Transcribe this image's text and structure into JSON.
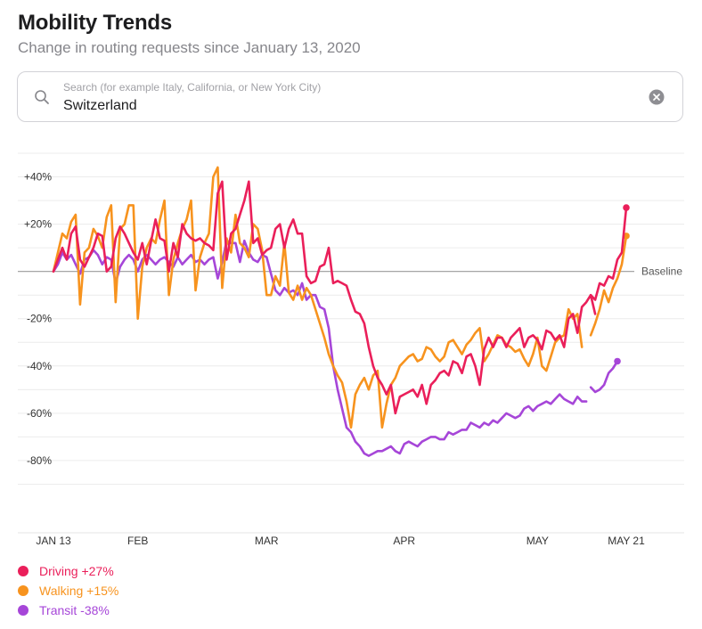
{
  "header": {
    "title": "Mobility Trends",
    "subtitle": "Change in routing requests since January 13, 2020"
  },
  "search": {
    "placeholder": "Search (for example Italy, California, or New York City)",
    "value": "Switzerland",
    "icon": "search-icon",
    "clear_icon": "clear-icon"
  },
  "legend": [
    {
      "label": "Driving +27%",
      "color": "#ea1f5a"
    },
    {
      "label": "Walking +15%",
      "color": "#f7931e"
    },
    {
      "label": "Transit -38%",
      "color": "#a646d8"
    }
  ],
  "chart_data": {
    "type": "line",
    "baseline_label": "Baseline",
    "y_ticks": [
      "+40%",
      "+20%",
      "-20%",
      "-40%",
      "-60%",
      "-80%"
    ],
    "y_tick_values": [
      40,
      20,
      -20,
      -40,
      -60,
      -80
    ],
    "ylim": [
      -100,
      50
    ],
    "x_ticks": [
      "JAN 13",
      "FEB",
      "MAR",
      "APR",
      "MAY",
      "MAY 21"
    ],
    "x_tick_days": [
      0,
      19,
      48,
      79,
      109,
      129
    ],
    "x_range_days": [
      0,
      129
    ],
    "grid": true,
    "legend_position": "bottom-left",
    "series": [
      {
        "name": "Driving",
        "color": "#ea1f5a",
        "segments": [
          {
            "start_day": 0,
            "values": [
              0,
              5,
              10,
              5,
              16,
              19,
              5,
              2,
              6,
              10,
              16,
              15,
              0,
              2,
              14,
              19,
              16,
              12,
              8,
              5,
              12,
              3,
              13,
              22,
              14,
              13,
              0,
              12,
              6,
              20,
              16,
              14,
              13,
              14,
              12,
              11,
              9,
              33,
              38,
              5,
              16,
              18,
              24,
              30,
              38,
              12,
              14,
              7,
              9,
              10,
              18,
              20,
              10,
              18,
              22,
              16,
              16,
              -2,
              -5,
              -4,
              2,
              3,
              10,
              -5,
              -4,
              -5,
              -6,
              -12,
              -17,
              -18,
              -22,
              -32,
              -40,
              -45,
              -48,
              -52,
              -48,
              -60,
              -53,
              -52,
              -51,
              -50,
              -53,
              -48,
              -56,
              -48,
              -46,
              -43,
              -42,
              -44,
              -38,
              -39,
              -43,
              -36,
              -35,
              -40,
              -48,
              -33,
              -28,
              -32,
              -28,
              -28,
              -32,
              -28,
              -26,
              -24,
              -32,
              -28,
              -27,
              -29,
              -33,
              -25,
              -26,
              -29,
              -27,
              -32,
              -20,
              -18,
              -26,
              -15,
              -13,
              -10,
              -18
            ]
          },
          {
            "start_day": 121,
            "values": [
              -10,
              -12,
              -5,
              -6,
              -2,
              -3,
              5,
              8,
              27
            ]
          }
        ]
      },
      {
        "name": "Walking",
        "color": "#f7931e",
        "segments": [
          {
            "start_day": 0,
            "values": [
              0,
              8,
              16,
              14,
              21,
              24,
              -14,
              8,
              10,
              18,
              15,
              10,
              23,
              28,
              -13,
              18,
              20,
              28,
              28,
              -20,
              2,
              10,
              14,
              12,
              22,
              30,
              -10,
              5,
              12,
              18,
              22,
              30,
              -8,
              6,
              12,
              16,
              40,
              44,
              -7,
              14,
              8,
              24,
              12,
              10,
              6,
              20,
              18,
              9,
              -10,
              -10,
              -2,
              -6,
              12,
              -9,
              -12,
              -6,
              -12,
              -7,
              -10,
              -16,
              -22,
              -28,
              -35,
              -40,
              -44,
              -47,
              -55,
              -66,
              -52,
              -48,
              -45,
              -50,
              -44,
              -42,
              -66,
              -56,
              -48,
              -45,
              -40,
              -38,
              -36,
              -35,
              -38,
              -37,
              -32,
              -33,
              -36,
              -38,
              -36,
              -30,
              -29,
              -32,
              -35,
              -31,
              -29,
              -26,
              -24,
              -38,
              -35,
              -31,
              -27,
              -28,
              -31,
              -32,
              -34,
              -33,
              -37,
              -40,
              -35,
              -28,
              -40,
              -42,
              -36,
              -30,
              -28,
              -27,
              -16,
              -20,
              -18,
              -32
            ]
          },
          {
            "start_day": 121,
            "values": [
              -27,
              -22,
              -16,
              -8,
              -13,
              -7,
              -3,
              3,
              15
            ]
          }
        ]
      },
      {
        "name": "Transit",
        "color": "#a646d8",
        "segments": [
          {
            "start_day": 0,
            "values": [
              0,
              3,
              8,
              5,
              7,
              3,
              -1,
              5,
              6,
              9,
              7,
              3,
              6,
              5,
              -5,
              2,
              5,
              7,
              5,
              0,
              5,
              7,
              5,
              3,
              5,
              6,
              4,
              2,
              6,
              3,
              5,
              7,
              4,
              5,
              3,
              5,
              6,
              -3,
              4,
              13,
              12,
              12,
              4,
              13,
              8,
              5,
              4,
              7,
              6,
              -1,
              -8,
              -10,
              -7,
              -9,
              -8,
              -10,
              -5,
              -12,
              -10,
              -10,
              -15,
              -16,
              -24,
              -40,
              -50,
              -58,
              -66,
              -68,
              -72,
              -74,
              -77,
              -78,
              -77,
              -76,
              -76,
              -75,
              -74,
              -76,
              -77,
              -73,
              -72,
              -73,
              -74,
              -72,
              -71,
              -70,
              -70,
              -71,
              -71,
              -68,
              -69,
              -68,
              -67,
              -67,
              -64,
              -65,
              -66,
              -64,
              -65,
              -63,
              -64,
              -62,
              -60,
              -61,
              -62,
              -61,
              -58,
              -57,
              -59,
              -57,
              -56,
              -55,
              -56,
              -54,
              -52,
              -54,
              -55,
              -56,
              -53,
              -55,
              -55
            ]
          },
          {
            "start_day": 121,
            "values": [
              -49,
              -51,
              -50,
              -48,
              -43,
              -41,
              -38
            ]
          }
        ]
      }
    ]
  }
}
